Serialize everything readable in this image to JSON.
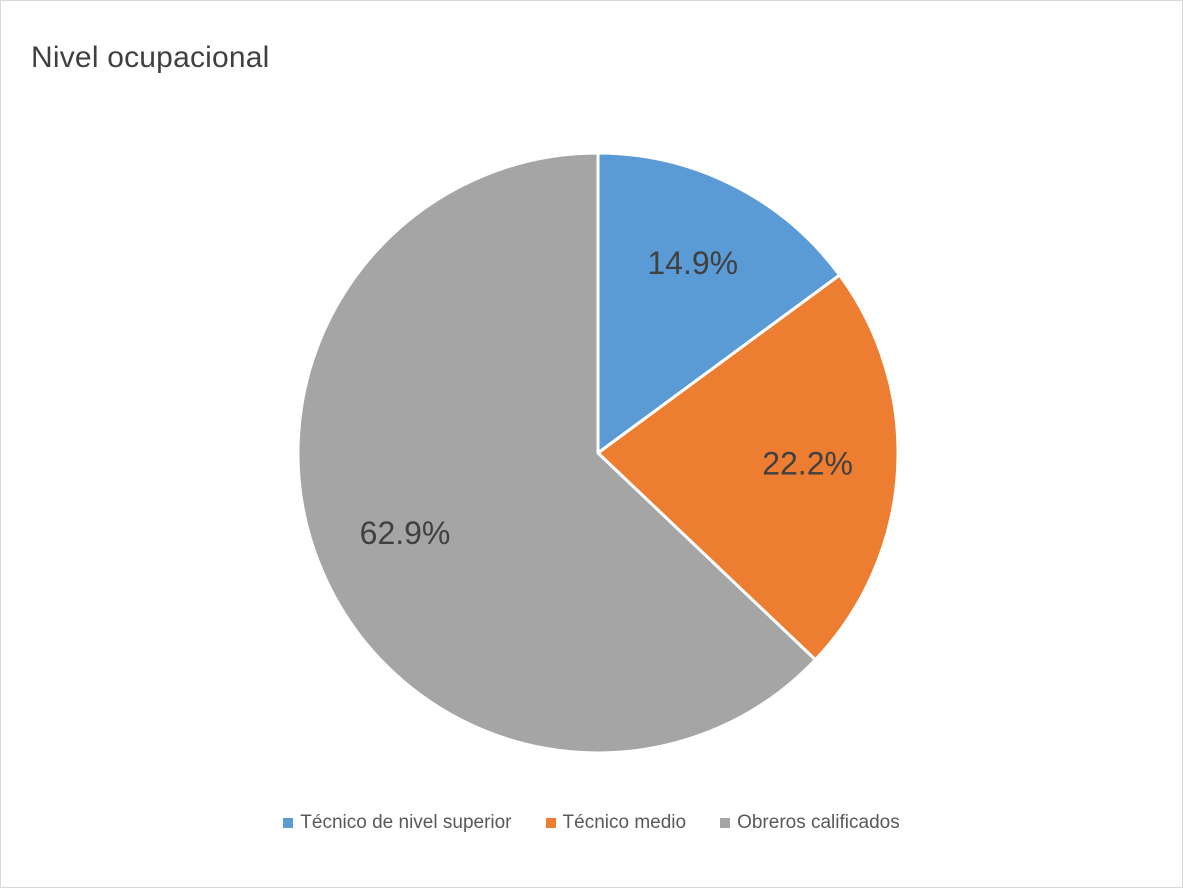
{
  "chart_data": {
    "type": "pie",
    "title": "Nivel ocupacional",
    "categories": [
      "Técnico de nivel superior",
      "Técnico medio",
      "Obreros calificados"
    ],
    "values": [
      14.9,
      22.2,
      62.9
    ],
    "data_labels": [
      "14.9%",
      "22.2%",
      "62.9%"
    ],
    "colors": [
      "#5b9bd5",
      "#ed7d31",
      "#a5a5a5"
    ],
    "legend_position": "bottom",
    "start_angle": "12 o'clock",
    "direction": "clockwise"
  }
}
